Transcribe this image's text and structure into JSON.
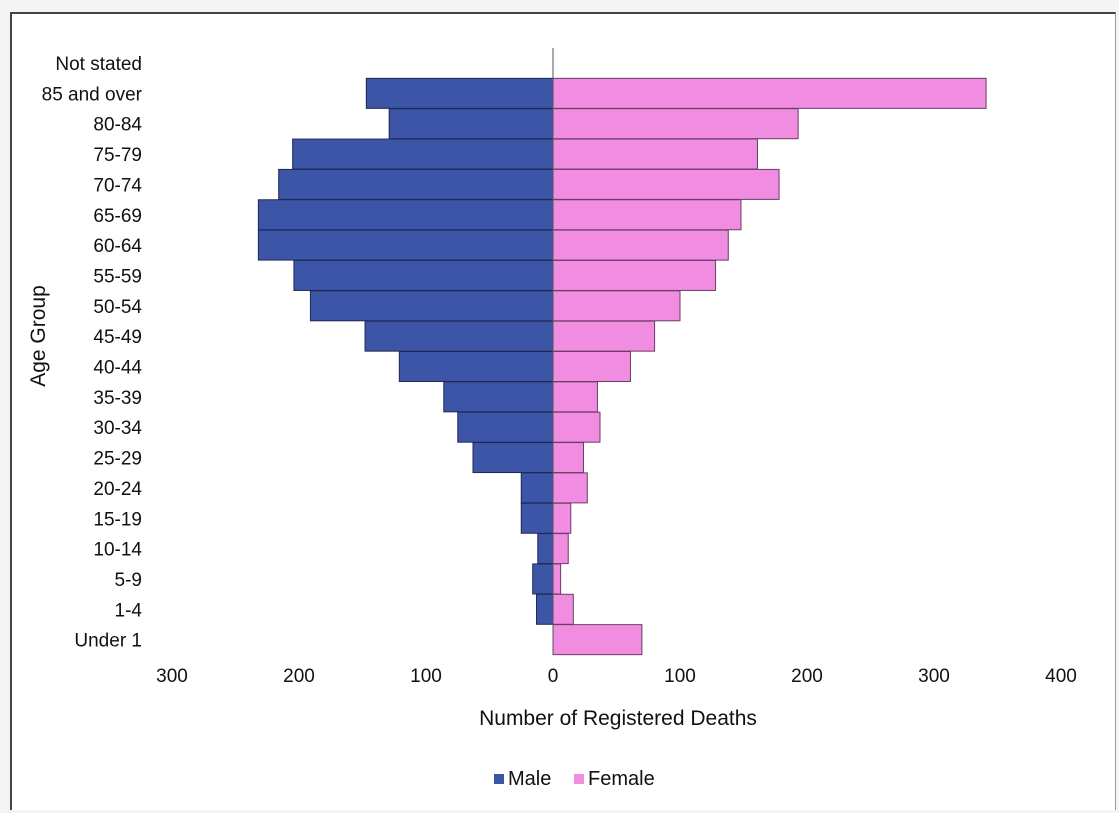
{
  "chart_data": {
    "type": "bar",
    "orientation": "horizontal",
    "layout": "population-pyramid",
    "categories": [
      "Not stated",
      "85 and over",
      "80-84",
      "75-79",
      "70-74",
      "65-69",
      "60-64",
      "55-59",
      "50-54",
      "45-49",
      "40-44",
      "35-39",
      "30-34",
      "25-29",
      "20-24",
      "15-19",
      "10-14",
      "5-9",
      "1-4",
      "Under 1"
    ],
    "series": [
      {
        "name": "Male",
        "color": "#3c55a6",
        "direction": "left",
        "values": [
          0,
          147,
          129,
          205,
          216,
          232,
          232,
          204,
          191,
          148,
          121,
          86,
          75,
          63,
          25,
          25,
          12,
          16,
          13,
          0
        ]
      },
      {
        "name": "Female",
        "color": "#f08de0",
        "direction": "right",
        "values": [
          0,
          341,
          193,
          161,
          178,
          148,
          138,
          128,
          100,
          80,
          61,
          35,
          37,
          24,
          27,
          14,
          12,
          6,
          16,
          70
        ]
      }
    ],
    "title": "",
    "xlabel": "Number of Registered Deaths",
    "ylabel": "Age Group",
    "x_ticks": [
      "300",
      "200",
      "100",
      "0",
      "100",
      "200",
      "300",
      "400"
    ],
    "xlim": [
      -300,
      400
    ],
    "grid": false,
    "legend_position": "bottom-center"
  }
}
